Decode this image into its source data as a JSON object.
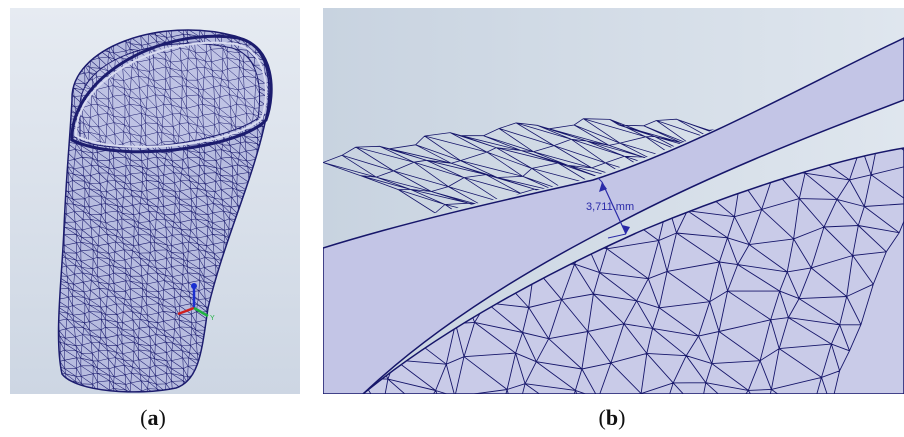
{
  "panels": [
    {
      "id": "a",
      "caption_open": "(",
      "caption_letter": "a",
      "caption_close": ")",
      "background": "#d9e0ea",
      "mesh_color": "#1c1c6e",
      "surface_color": "#b9bde0",
      "axis_labels": {
        "y": "Y"
      }
    },
    {
      "id": "b",
      "caption_open": "(",
      "caption_letter": "b",
      "caption_close": ")",
      "background": "#cfd9e4",
      "mesh_color": "#16166a",
      "shell_color": "#c4c6e6",
      "measurement": {
        "value": "3,711",
        "unit": "mm"
      }
    }
  ]
}
